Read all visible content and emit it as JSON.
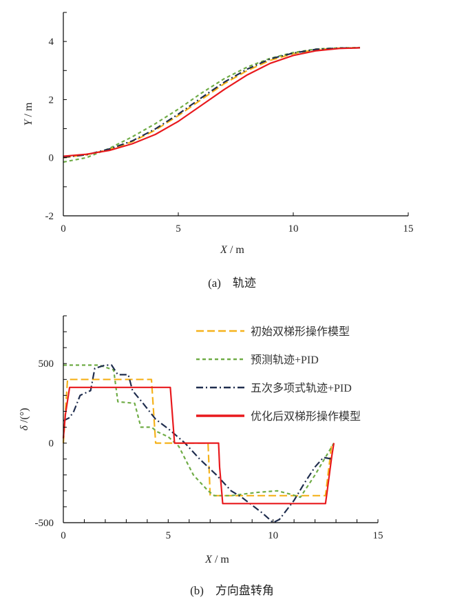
{
  "colors": {
    "initial": "#f5b21b",
    "predictive": "#6fac46",
    "quintic": "#1f2d4e",
    "optimized": "#e8191d",
    "axis": "#000000"
  },
  "chart_data": [
    {
      "type": "line",
      "title": "",
      "caption": "(a)　轨迹",
      "xlabel_var": "X",
      "xlabel_unit": "/  m",
      "ylabel_var": "Y",
      "ylabel_unit": "/  m",
      "xlim": [
        0,
        15
      ],
      "ylim": [
        -2,
        5
      ],
      "xticks": [
        0,
        5,
        10,
        15
      ],
      "yticks": [
        -2,
        0,
        2,
        4
      ],
      "xtick_labels": [
        "0",
        "5",
        "10",
        "15"
      ],
      "ytick_labels": [
        "-2",
        "0",
        "2",
        "4"
      ],
      "grid": false,
      "series": [
        {
          "name": "初始双梯形操作模型",
          "color_key": "initial",
          "dash": "dash",
          "x": [
            0,
            1,
            2,
            3,
            4,
            5,
            6,
            7,
            8,
            9,
            10,
            11,
            12,
            12.9
          ],
          "y": [
            0.0,
            0.1,
            0.28,
            0.55,
            0.95,
            1.45,
            2.0,
            2.55,
            3.0,
            3.35,
            3.58,
            3.72,
            3.77,
            3.78
          ]
        },
        {
          "name": "预测轨迹+PID",
          "color_key": "predictive",
          "dash": "short",
          "x": [
            0,
            1,
            2,
            3,
            4,
            5,
            6,
            7,
            8,
            9,
            10,
            11,
            12,
            12.9
          ],
          "y": [
            -0.15,
            0.0,
            0.32,
            0.72,
            1.17,
            1.67,
            2.22,
            2.72,
            3.12,
            3.42,
            3.62,
            3.74,
            3.78,
            3.79
          ]
        },
        {
          "name": "五次多项式轨迹+PID",
          "color_key": "quintic",
          "dash": "dashdot",
          "x": [
            0,
            1,
            2,
            3,
            4,
            5,
            6,
            7,
            8,
            9,
            10,
            11,
            12,
            12.9
          ],
          "y": [
            0.02,
            0.1,
            0.3,
            0.58,
            0.99,
            1.5,
            2.06,
            2.6,
            3.05,
            3.4,
            3.6,
            3.73,
            3.77,
            3.78
          ]
        },
        {
          "name": "优化后双梯形操作模型",
          "color_key": "optimized",
          "dash": "solid",
          "x": [
            0,
            1,
            2,
            3,
            4,
            5,
            6,
            7,
            8,
            9,
            10,
            11,
            12,
            12.9
          ],
          "y": [
            0.05,
            0.12,
            0.25,
            0.48,
            0.8,
            1.25,
            1.8,
            2.35,
            2.85,
            3.25,
            3.52,
            3.68,
            3.76,
            3.78
          ]
        }
      ]
    },
    {
      "type": "line",
      "title": "",
      "caption": "(b)　方向盘转角",
      "xlabel_var": "X",
      "xlabel_unit": "/  m",
      "ylabel_var": "δ",
      "ylabel_unit": " /(°)",
      "xlim": [
        0,
        15
      ],
      "ylim": [
        -500,
        800
      ],
      "xticks": [
        0,
        5,
        10,
        15
      ],
      "yticks": [
        -500,
        0,
        500
      ],
      "xtick_labels": [
        "0",
        "5",
        "10",
        "15"
      ],
      "ytick_labels": [
        "-500",
        "0",
        "500"
      ],
      "grid": false,
      "legend_position": "top-right",
      "series": [
        {
          "name": "初始双梯形操作模型",
          "color_key": "initial",
          "dash": "dash",
          "x": [
            0,
            0.2,
            4.2,
            4.4,
            6.9,
            7.0,
            12.5,
            12.8
          ],
          "y": [
            0,
            400,
            400,
            0,
            0,
            -330,
            -330,
            0
          ]
        },
        {
          "name": "预测轨迹+PID",
          "color_key": "predictive",
          "dash": "short",
          "x": [
            0,
            1.7,
            2.4,
            2.6,
            3.4,
            3.7,
            4.2,
            4.5,
            5.0,
            5.5,
            6.2,
            6.9,
            7.2,
            8.0,
            9.2,
            10.2,
            10.8,
            11.3,
            12.0,
            12.9
          ],
          "y": [
            490,
            490,
            460,
            260,
            250,
            100,
            100,
            70,
            40,
            -20,
            -200,
            -300,
            -330,
            -330,
            -310,
            -300,
            -320,
            -340,
            -200,
            0
          ]
        },
        {
          "name": "五次多项式轨迹+PID",
          "color_key": "quintic",
          "dash": "dashdot",
          "x": [
            0,
            0.3,
            0.5,
            0.8,
            1.3,
            1.5,
            2.0,
            2.3,
            2.6,
            3.1,
            3.3,
            3.8,
            4.4,
            5.1,
            5.8,
            6.5,
            7.3,
            8.0,
            8.5,
            9.5,
            10.0,
            10.3,
            11.0,
            11.5,
            12.0,
            12.4,
            12.8
          ],
          "y": [
            140,
            160,
            200,
            300,
            330,
            470,
            490,
            490,
            430,
            430,
            330,
            250,
            150,
            80,
            0,
            -100,
            -200,
            -300,
            -340,
            -440,
            -500,
            -480,
            -360,
            -250,
            -150,
            -90,
            -100
          ]
        },
        {
          "name": "优化后双梯形操作模型",
          "color_key": "optimized",
          "dash": "solid",
          "x": [
            0,
            0.1,
            0.3,
            5.1,
            5.3,
            7.4,
            7.45,
            7.6,
            12.5,
            12.55,
            12.8,
            12.9
          ],
          "y": [
            30,
            180,
            350,
            350,
            0,
            0,
            -150,
            -380,
            -380,
            -330,
            -80,
            0
          ]
        }
      ]
    }
  ]
}
